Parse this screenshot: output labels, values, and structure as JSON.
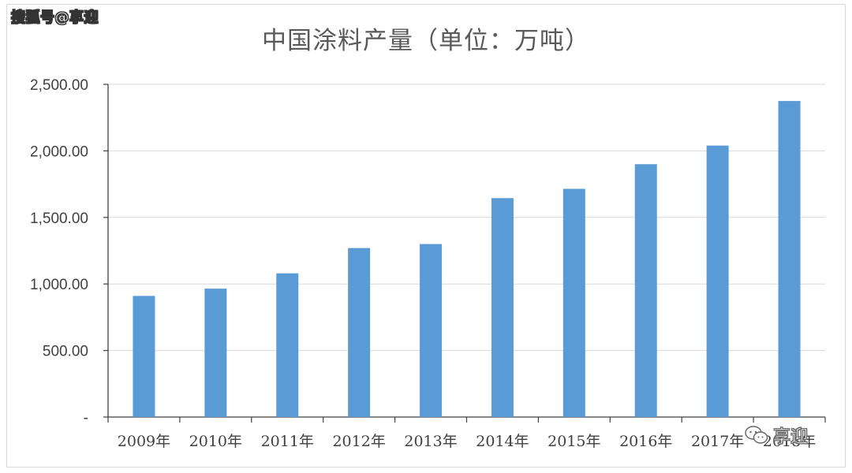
{
  "watermark": {
    "source": "搜狐号@享迎",
    "wechat_label": "享迎",
    "wechat_icon": "wechat-icon"
  },
  "chart_data": {
    "type": "bar",
    "title": "中国涂料产量（单位：万吨）",
    "xlabel": "",
    "ylabel": "",
    "categories": [
      "2009年",
      "2010年",
      "2011年",
      "2012年",
      "2013年",
      "2014年",
      "2015年",
      "2016年",
      "2017年",
      "2018年"
    ],
    "values": [
      910,
      965,
      1080,
      1270,
      1300,
      1645,
      1715,
      1900,
      2040,
      2375
    ],
    "ylim": [
      0,
      2500
    ],
    "yticks": [
      0,
      500,
      1000,
      1500,
      2000,
      2500
    ],
    "ytick_labels": [
      "-",
      "500.00",
      "1,000.00",
      "1,500.00",
      "2,000.00",
      "2,500.00"
    ],
    "grid": true,
    "legend": "none",
    "bar_color": "#5b9bd5",
    "grid_color": "#d9d9d9",
    "axis_color": "#404040"
  }
}
